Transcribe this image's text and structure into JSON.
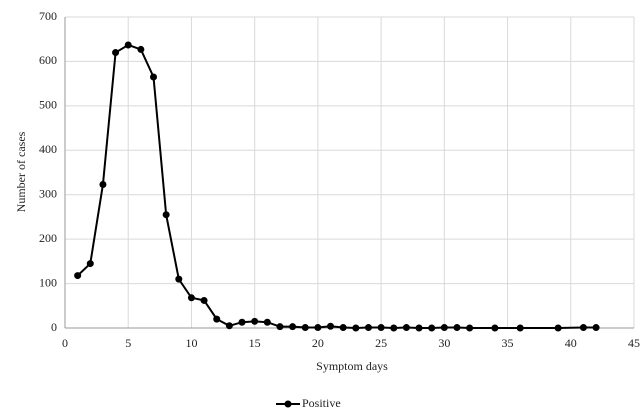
{
  "chart_data": {
    "type": "line",
    "x_label": "Symptom days",
    "y_label": "Number of cases",
    "x": [
      1,
      2,
      3,
      4,
      5,
      6,
      7,
      8,
      9,
      10,
      11,
      12,
      13,
      14,
      15,
      16,
      17,
      18,
      19,
      20,
      21,
      22,
      23,
      24,
      25,
      26,
      27,
      28,
      29,
      30,
      31,
      32,
      34,
      36,
      39,
      41,
      42
    ],
    "series": [
      {
        "name": "Positive",
        "color": "#000000",
        "values": [
          118,
          145,
          323,
          620,
          637,
          627,
          565,
          255,
          110,
          68,
          62,
          20,
          5,
          13,
          15,
          13,
          3,
          3,
          1,
          1,
          4,
          1,
          0,
          1,
          1,
          0,
          1,
          0,
          0,
          1,
          1,
          0,
          0,
          0,
          0,
          1,
          1
        ]
      }
    ],
    "xlim": [
      0,
      45
    ],
    "xticks": [
      0,
      5,
      10,
      15,
      20,
      25,
      30,
      35,
      40,
      45
    ],
    "ylim": [
      0,
      700
    ],
    "yticks": [
      0,
      100,
      200,
      300,
      400,
      500,
      600,
      700
    ],
    "grid": true,
    "legend": "bottom"
  }
}
